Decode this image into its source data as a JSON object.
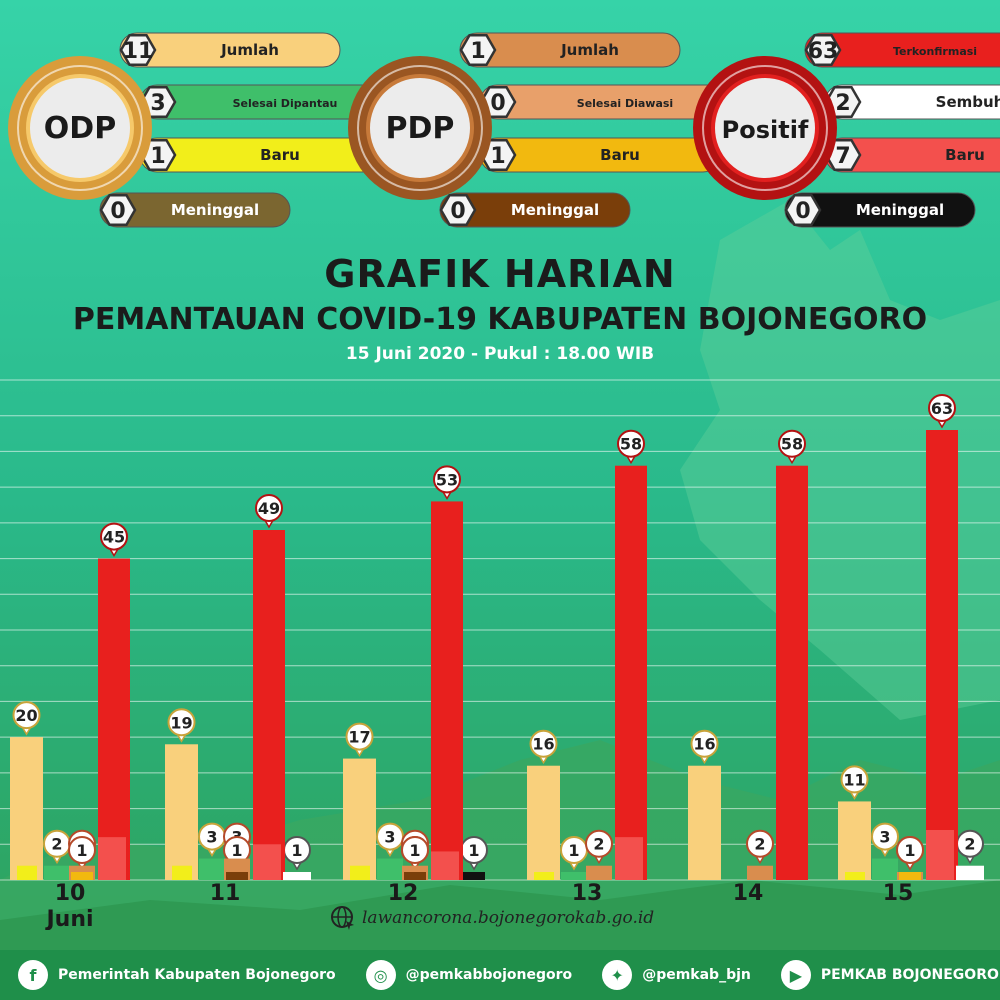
{
  "summary": [
    {
      "label": "ODP",
      "center_color": "#f6c96a",
      "ring_color": "#d99c3b",
      "items": [
        {
          "value": "11",
          "label": "Jumlah",
          "color": "#f9d07c"
        },
        {
          "value": "3",
          "label": "Selesai Dipantau",
          "color": "#3fbf6a"
        },
        {
          "value": "1",
          "label": "Baru",
          "color": "#f2ee1a"
        },
        {
          "value": "0",
          "label": "Meninggal",
          "color": "#7b6630"
        }
      ]
    },
    {
      "label": "PDP",
      "center_color": "#c77a3a",
      "ring_color": "#9a5622",
      "items": [
        {
          "value": "1",
          "label": "Jumlah",
          "color": "#d98d4e"
        },
        {
          "value": "0",
          "label": "Selesai Diawasi",
          "color": "#e8a06a"
        },
        {
          "value": "1",
          "label": "Baru",
          "color": "#f2b90f"
        },
        {
          "value": "0",
          "label": "Meninggal",
          "color": "#7a3e0a"
        }
      ]
    },
    {
      "label": "Positif",
      "center_color": "#e2201f",
      "ring_color": "#b31212",
      "items": [
        {
          "value": "63",
          "label": "Terkonfirmasi",
          "color": "#e8201e"
        },
        {
          "value": "2",
          "label": "Sembuh",
          "color": "#ffffff"
        },
        {
          "value": "7",
          "label": "Baru",
          "color": "#f3504d"
        },
        {
          "value": "0",
          "label": "Meninggal",
          "color": "#111111"
        }
      ]
    }
  ],
  "header": {
    "title": "GRAFIK HARIAN",
    "subtitle": "PEMANTAUAN COVID-19 KABUPATEN BOJONEGORO",
    "date": "15 Juni 2020 - Pukul : 18.00 WIB"
  },
  "chart_data": {
    "type": "bar",
    "categories": [
      "10",
      "11",
      "12",
      "13",
      "14",
      "15"
    ],
    "x_caption": "Juni",
    "series": [
      {
        "key": "odp_jumlah",
        "color": "#f9d07c",
        "values": [
          20,
          19,
          17,
          16,
          16,
          11
        ]
      },
      {
        "key": "odp_baru",
        "color": "#f2ee1a",
        "values": [
          2,
          2,
          2,
          1,
          null,
          1
        ]
      },
      {
        "key": "odp_selesai",
        "color": "#3fbf6a",
        "values": [
          2,
          3,
          3,
          1,
          null,
          3
        ]
      },
      {
        "key": "pdp_jumlah",
        "color": "#d98d4e",
        "values": [
          2,
          3,
          2,
          2,
          2,
          1
        ]
      },
      {
        "key": "pdp_baru",
        "color": "#f2b90f",
        "values": [
          1,
          null,
          1,
          null,
          null,
          1
        ]
      },
      {
        "key": "pdp_selesai",
        "color": "#7a3e0a",
        "values": [
          null,
          1,
          1,
          null,
          null,
          null
        ]
      },
      {
        "key": "positif_jumlah",
        "color": "#e8201e",
        "values": [
          45,
          49,
          53,
          58,
          58,
          63
        ]
      },
      {
        "key": "positif_baru",
        "color": "#f3504d",
        "values": [
          6,
          5,
          4,
          6,
          null,
          7
        ]
      },
      {
        "key": "positif_meninggal",
        "color": "#111111",
        "values": [
          null,
          null,
          1,
          null,
          null,
          null
        ]
      },
      {
        "key": "positif_sembuh",
        "color": "#ffffff",
        "values": [
          null,
          1,
          null,
          null,
          null,
          2
        ]
      }
    ],
    "ylim": [
      0,
      70
    ],
    "grid": true
  },
  "footer": {
    "website": "lawancorona.bojonegorokab.go.id",
    "facebook": "Pemerintah Kabupaten Bojonegoro",
    "instagram": "@pemkabbojonegoro",
    "twitter": "@pemkab_bjn",
    "youtube": "PEMKAB BOJONEGORO"
  }
}
